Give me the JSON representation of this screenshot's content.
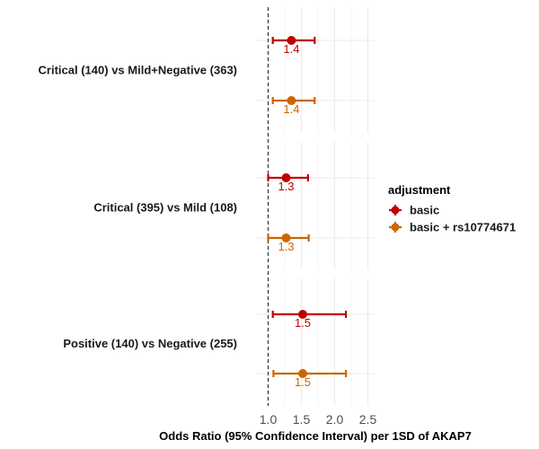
{
  "chart_data": {
    "type": "forest",
    "xlabel": "Odds Ratio (95% Confidence Interval) per 1SD of AKAP7",
    "xlim": [
      0.95,
      2.6
    ],
    "x_ticks": [
      1.0,
      1.5,
      2.0,
      2.5
    ],
    "x_tick_labels": [
      "1.0",
      "1.5",
      "2.0",
      "2.5"
    ],
    "reference_line": 1.0,
    "grid": true,
    "legend": {
      "title": "adjustment",
      "placement": "right",
      "entries": [
        {
          "name": "basic",
          "color": "#c00000"
        },
        {
          "name": "basic + rs10774671",
          "color": "#cc6600"
        }
      ]
    },
    "panels": [
      {
        "label": "Critical (140) vs Mild+Negative (363)",
        "estimates": [
          {
            "series": "basic",
            "or": 1.35,
            "lower": 1.07,
            "upper": 1.7,
            "label": "1.4"
          },
          {
            "series": "basic + rs10774671",
            "or": 1.35,
            "lower": 1.07,
            "upper": 1.7,
            "label": "1.4"
          }
        ]
      },
      {
        "label": "Critical (395) vs Mild (108)",
        "estimates": [
          {
            "series": "basic",
            "or": 1.27,
            "lower": 1.0,
            "upper": 1.6,
            "label": "1.3"
          },
          {
            "series": "basic + rs10774671",
            "or": 1.27,
            "lower": 1.0,
            "upper": 1.61,
            "label": "1.3"
          }
        ]
      },
      {
        "label": "Positive (140) vs Negative (255)",
        "estimates": [
          {
            "series": "basic",
            "or": 1.52,
            "lower": 1.07,
            "upper": 2.17,
            "label": "1.5"
          },
          {
            "series": "basic + rs10774671",
            "or": 1.52,
            "lower": 1.08,
            "upper": 2.17,
            "label": "1.5"
          }
        ]
      }
    ]
  }
}
